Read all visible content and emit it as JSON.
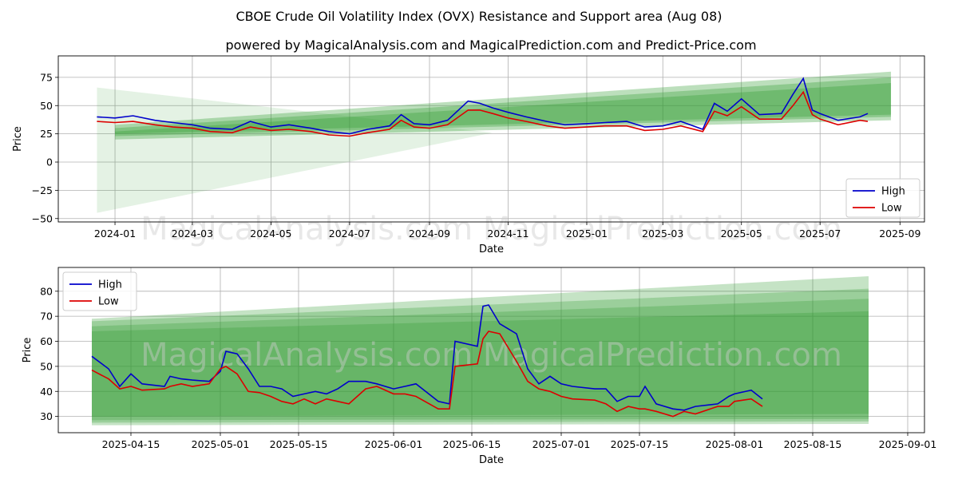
{
  "title": "CBOE Crude Oil Volatility Index (OVX) Resistance and Support area (Aug 08)",
  "subtitle": "powered by MagicalAnalysis.com and MagicalPrediction.com and Predict-Price.com",
  "watermark": "MagicalAnalysis.com    MagicalPrediction.com",
  "colors": {
    "high": "#0000cc",
    "low": "#dd0000",
    "band": "#2e9a2e",
    "grid": "#b0b0b0"
  },
  "chart_data": [
    {
      "type": "line",
      "xlabel": "Date",
      "ylabel": "Price",
      "x_ticks": [
        "2024-01",
        "2024-03",
        "2024-05",
        "2024-07",
        "2024-09",
        "2024-11",
        "2025-01",
        "2025-03",
        "2025-05",
        "2025-07",
        "2025-09"
      ],
      "x_range": [
        "2023-11-18",
        "2025-09-20"
      ],
      "y_ticks": [
        -50,
        -25,
        0,
        25,
        50,
        75
      ],
      "ylim": [
        -53,
        94
      ],
      "grid": true,
      "legend": "bottom-right",
      "series": [
        {
          "name": "High",
          "x": [
            "2023-12-18",
            "2024-01-01",
            "2024-01-15",
            "2024-02-01",
            "2024-02-15",
            "2024-03-01",
            "2024-03-15",
            "2024-04-01",
            "2024-04-15",
            "2024-05-01",
            "2024-05-15",
            "2024-06-01",
            "2024-06-15",
            "2024-07-01",
            "2024-07-15",
            "2024-08-01",
            "2024-08-10",
            "2024-08-20",
            "2024-09-01",
            "2024-09-15",
            "2024-10-01",
            "2024-10-10",
            "2024-10-20",
            "2024-11-01",
            "2024-11-15",
            "2024-12-01",
            "2024-12-15",
            "2025-01-01",
            "2025-01-15",
            "2025-02-01",
            "2025-02-15",
            "2025-03-01",
            "2025-03-15",
            "2025-04-01",
            "2025-04-10",
            "2025-04-20",
            "2025-05-01",
            "2025-05-15",
            "2025-06-01",
            "2025-06-10",
            "2025-06-18",
            "2025-06-25",
            "2025-07-01",
            "2025-07-15",
            "2025-08-01",
            "2025-08-07"
          ],
          "values": [
            40,
            39,
            41,
            37,
            35,
            33,
            30,
            29,
            36,
            31,
            33,
            30,
            27,
            25,
            29,
            32,
            42,
            34,
            33,
            37,
            54,
            52,
            48,
            44,
            40,
            36,
            33,
            34,
            35,
            36,
            31,
            32,
            36,
            29,
            52,
            45,
            56,
            42,
            43,
            60,
            74,
            46,
            43,
            37,
            40,
            43
          ]
        },
        {
          "name": "Low",
          "x": [
            "2023-12-18",
            "2024-01-01",
            "2024-01-15",
            "2024-02-01",
            "2024-02-15",
            "2024-03-01",
            "2024-03-15",
            "2024-04-01",
            "2024-04-15",
            "2024-05-01",
            "2024-05-15",
            "2024-06-01",
            "2024-06-15",
            "2024-07-01",
            "2024-07-15",
            "2024-08-01",
            "2024-08-10",
            "2024-08-20",
            "2024-09-01",
            "2024-09-15",
            "2024-10-01",
            "2024-10-10",
            "2024-10-20",
            "2024-11-01",
            "2024-11-15",
            "2024-12-01",
            "2024-12-15",
            "2025-01-01",
            "2025-01-15",
            "2025-02-01",
            "2025-02-15",
            "2025-03-01",
            "2025-03-15",
            "2025-04-01",
            "2025-04-10",
            "2025-04-20",
            "2025-05-01",
            "2025-05-15",
            "2025-06-01",
            "2025-06-10",
            "2025-06-18",
            "2025-06-25",
            "2025-07-01",
            "2025-07-15",
            "2025-08-01",
            "2025-08-07"
          ],
          "values": [
            36,
            35,
            36,
            33,
            31,
            30,
            27,
            26,
            31,
            28,
            29,
            27,
            24,
            23,
            26,
            29,
            37,
            31,
            30,
            33,
            46,
            46,
            43,
            39,
            36,
            32,
            30,
            31,
            32,
            32,
            28,
            29,
            32,
            27,
            45,
            41,
            49,
            38,
            38,
            50,
            62,
            42,
            38,
            33,
            37,
            36
          ]
        }
      ],
      "bands": [
        {
          "x": [
            "2024-01-01",
            "2025-08-25"
          ],
          "upper": [
            33,
            80
          ],
          "lower": [
            20,
            37
          ]
        },
        {
          "x": [
            "2024-01-01",
            "2025-08-25"
          ],
          "upper": [
            30,
            75
          ],
          "lower": [
            23,
            40
          ]
        },
        {
          "x": [
            "2024-01-01",
            "2025-08-25"
          ],
          "upper": [
            27,
            70
          ],
          "lower": [
            25,
            42
          ]
        }
      ]
    },
    {
      "type": "line",
      "xlabel": "Date",
      "ylabel": "Price",
      "x_ticks": [
        "2025-04-15",
        "2025-05-01",
        "2025-05-15",
        "2025-06-01",
        "2025-06-15",
        "2025-07-01",
        "2025-07-15",
        "2025-08-01",
        "2025-08-15",
        "2025-09-01"
      ],
      "x_range": [
        "2025-04-02",
        "2025-09-04"
      ],
      "y_ticks": [
        30,
        40,
        50,
        60,
        70,
        80
      ],
      "ylim": [
        23.5,
        89.5
      ],
      "grid": true,
      "legend": "top-left",
      "series": [
        {
          "name": "High",
          "x": [
            "2025-04-08",
            "2025-04-11",
            "2025-04-13",
            "2025-04-15",
            "2025-04-17",
            "2025-04-21",
            "2025-04-22",
            "2025-04-24",
            "2025-04-26",
            "2025-04-29",
            "2025-05-01",
            "2025-05-02",
            "2025-05-04",
            "2025-05-06",
            "2025-05-08",
            "2025-05-10",
            "2025-05-12",
            "2025-05-14",
            "2025-05-16",
            "2025-05-18",
            "2025-05-20",
            "2025-05-22",
            "2025-05-24",
            "2025-05-27",
            "2025-05-29",
            "2025-06-01",
            "2025-06-03",
            "2025-06-05",
            "2025-06-09",
            "2025-06-11",
            "2025-06-12",
            "2025-06-16",
            "2025-06-17",
            "2025-06-18",
            "2025-06-20",
            "2025-06-23",
            "2025-06-25",
            "2025-06-27",
            "2025-06-29",
            "2025-07-01",
            "2025-07-03",
            "2025-07-07",
            "2025-07-09",
            "2025-07-11",
            "2025-07-13",
            "2025-07-15",
            "2025-07-16",
            "2025-07-18",
            "2025-07-21",
            "2025-07-23",
            "2025-07-25",
            "2025-07-29",
            "2025-07-31",
            "2025-08-01",
            "2025-08-04",
            "2025-08-06"
          ],
          "values": [
            54,
            49,
            42,
            47,
            43,
            42,
            46,
            45,
            44.5,
            44,
            48,
            56,
            55,
            49,
            42,
            42,
            41,
            38,
            39,
            40,
            39,
            41,
            44,
            44,
            43,
            41,
            42,
            43,
            36,
            35,
            60,
            58,
            74,
            74.5,
            67,
            63,
            49,
            43,
            46,
            43,
            42,
            41,
            41,
            36,
            38,
            38,
            42,
            35,
            33,
            32.5,
            34,
            35,
            38,
            39,
            40.5,
            37
          ]
        },
        {
          "name": "Low",
          "x": [
            "2025-04-08",
            "2025-04-11",
            "2025-04-13",
            "2025-04-15",
            "2025-04-17",
            "2025-04-21",
            "2025-04-22",
            "2025-04-24",
            "2025-04-26",
            "2025-04-29",
            "2025-05-01",
            "2025-05-02",
            "2025-05-04",
            "2025-05-06",
            "2025-05-08",
            "2025-05-10",
            "2025-05-12",
            "2025-05-14",
            "2025-05-16",
            "2025-05-18",
            "2025-05-20",
            "2025-05-22",
            "2025-05-24",
            "2025-05-27",
            "2025-05-29",
            "2025-06-01",
            "2025-06-03",
            "2025-06-05",
            "2025-06-09",
            "2025-06-11",
            "2025-06-12",
            "2025-06-16",
            "2025-06-17",
            "2025-06-18",
            "2025-06-20",
            "2025-06-23",
            "2025-06-25",
            "2025-06-27",
            "2025-06-29",
            "2025-07-01",
            "2025-07-03",
            "2025-07-07",
            "2025-07-09",
            "2025-07-11",
            "2025-07-13",
            "2025-07-15",
            "2025-07-16",
            "2025-07-18",
            "2025-07-21",
            "2025-07-23",
            "2025-07-25",
            "2025-07-29",
            "2025-07-31",
            "2025-08-01",
            "2025-08-04",
            "2025-08-06"
          ],
          "values": [
            48.5,
            45,
            41,
            42,
            40.5,
            41,
            42,
            43,
            42,
            43,
            49,
            50,
            47,
            40,
            39.5,
            38,
            36,
            35,
            37,
            35,
            37,
            36,
            35,
            41,
            42,
            39,
            39,
            38,
            33,
            33,
            50,
            51,
            61,
            64,
            63,
            52,
            44,
            41,
            40,
            38,
            37,
            36.5,
            35,
            32,
            34,
            33,
            33,
            32,
            30,
            32,
            31,
            34,
            34,
            36,
            37,
            34
          ]
        }
      ],
      "bands": [
        {
          "x": [
            "2025-04-08",
            "2025-08-25"
          ],
          "upper": [
            69,
            86
          ],
          "lower": [
            26.5,
            27
          ]
        },
        {
          "x": [
            "2025-04-08",
            "2025-08-25"
          ],
          "upper": [
            68,
            81
          ],
          "lower": [
            27.5,
            28
          ]
        },
        {
          "x": [
            "2025-04-08",
            "2025-08-25"
          ],
          "upper": [
            66,
            77
          ],
          "lower": [
            28.5,
            29
          ]
        },
        {
          "x": [
            "2025-04-08",
            "2025-08-25"
          ],
          "upper": [
            64,
            72
          ],
          "lower": [
            30,
            31
          ]
        }
      ]
    }
  ]
}
